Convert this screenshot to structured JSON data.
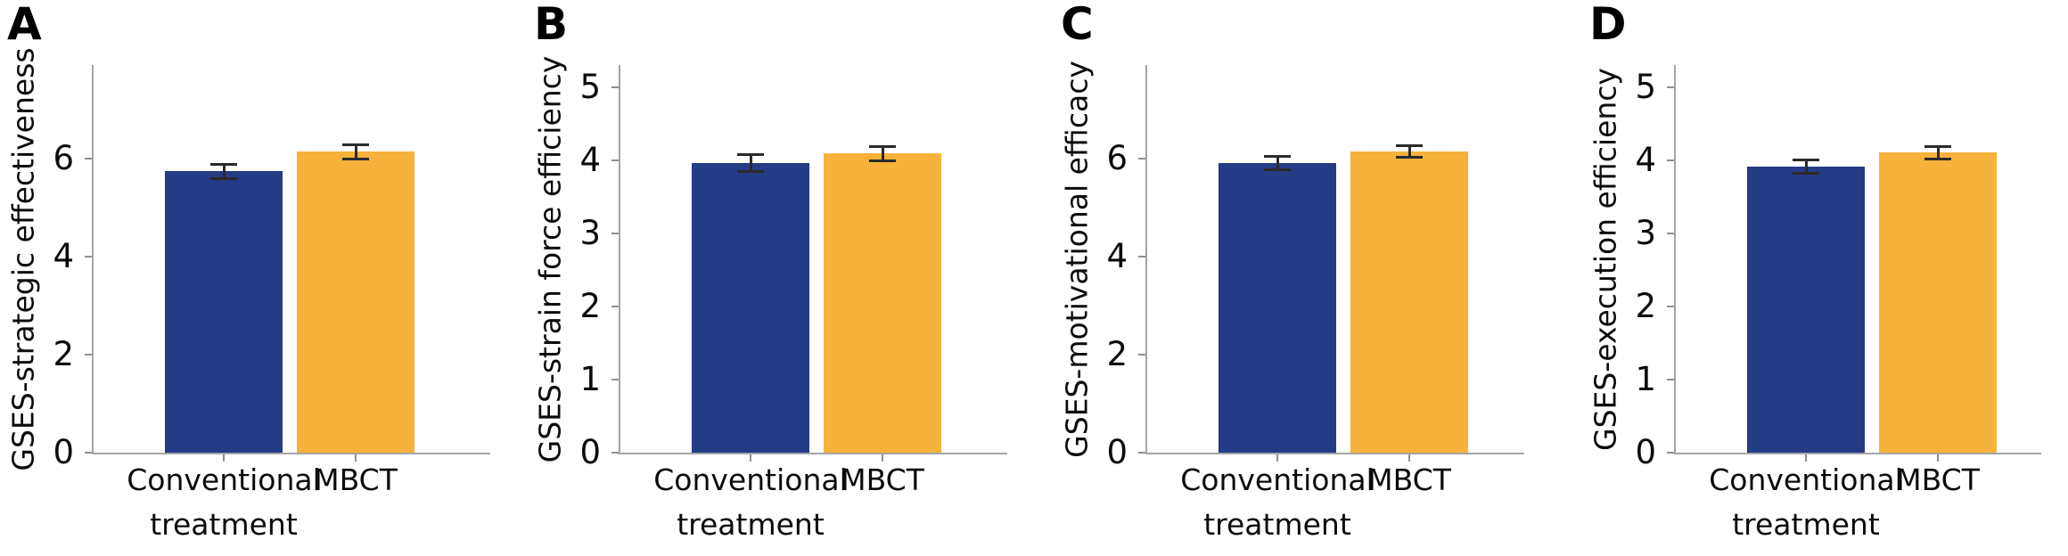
{
  "figure": {
    "background": "#ffffff",
    "bar_color_conventional": "#243B85",
    "bar_color_mbct": "#F6B23B",
    "axis_color": "#a5a5a5",
    "tick_color": "#8f8f8f",
    "error_bar_color": "#2a2a2a",
    "text_color": "#0b0b0b"
  },
  "chart_data": [
    {
      "type": "bar",
      "panel": "A",
      "title": "",
      "xlabel": "",
      "ylabel": "GSES-strategic effectiveness",
      "categories": [
        "Conventional\ntreatment",
        "MBCT"
      ],
      "series": [
        {
          "name": "Conventional treatment",
          "values": [
            5.73
          ],
          "error": [
            0.14
          ],
          "color": "#243B85"
        },
        {
          "name": "MBCT",
          "values": [
            6.13
          ],
          "error": [
            0.14
          ],
          "color": "#F6B23B"
        }
      ],
      "values": [
        5.73,
        6.13
      ],
      "errors": [
        0.14,
        0.14
      ],
      "yticks": [
        0,
        2,
        4,
        6
      ],
      "ylim": [
        0,
        7.9
      ],
      "grid": false,
      "legend": "none"
    },
    {
      "type": "bar",
      "panel": "B",
      "title": "",
      "xlabel": "",
      "ylabel": "GSES-strain force efficiency",
      "categories": [
        "Conventional\ntreatment",
        "MBCT"
      ],
      "series": [
        {
          "name": "Conventional treatment",
          "values": [
            3.96
          ],
          "error": [
            0.11
          ],
          "color": "#243B85"
        },
        {
          "name": "MBCT",
          "values": [
            4.09
          ],
          "error": [
            0.1
          ],
          "color": "#F6B23B"
        }
      ],
      "values": [
        3.96,
        4.09
      ],
      "errors": [
        0.11,
        0.1
      ],
      "yticks": [
        0,
        1,
        2,
        3,
        4,
        5
      ],
      "ylim": [
        0,
        5.3
      ],
      "grid": false,
      "legend": "none"
    },
    {
      "type": "bar",
      "panel": "C",
      "title": "",
      "xlabel": "",
      "ylabel": "GSES-motivational efficacy",
      "categories": [
        "Conventional\ntreatment",
        "MBCT"
      ],
      "series": [
        {
          "name": "Conventional treatment",
          "values": [
            5.9
          ],
          "error": [
            0.13
          ],
          "color": "#243B85"
        },
        {
          "name": "MBCT",
          "values": [
            6.14
          ],
          "error": [
            0.12
          ],
          "color": "#F6B23B"
        }
      ],
      "values": [
        5.9,
        6.14
      ],
      "errors": [
        0.13,
        0.12
      ],
      "yticks": [
        0,
        2,
        4,
        6
      ],
      "ylim": [
        0,
        7.9
      ],
      "grid": false,
      "legend": "none"
    },
    {
      "type": "bar",
      "panel": "D",
      "title": "",
      "xlabel": "",
      "ylabel": "GSES-execution efficiency",
      "categories": [
        "Conventional\ntreatment",
        "MBCT"
      ],
      "series": [
        {
          "name": "Conventional treatment",
          "values": [
            3.91
          ],
          "error": [
            0.09
          ],
          "color": "#243B85"
        },
        {
          "name": "MBCT",
          "values": [
            4.1
          ],
          "error": [
            0.09
          ],
          "color": "#F6B23B"
        }
      ],
      "values": [
        3.91,
        4.1
      ],
      "errors": [
        0.09,
        0.09
      ],
      "yticks": [
        0,
        1,
        2,
        3,
        4,
        5
      ],
      "ylim": [
        0,
        5.3
      ],
      "grid": false,
      "legend": "none"
    }
  ]
}
